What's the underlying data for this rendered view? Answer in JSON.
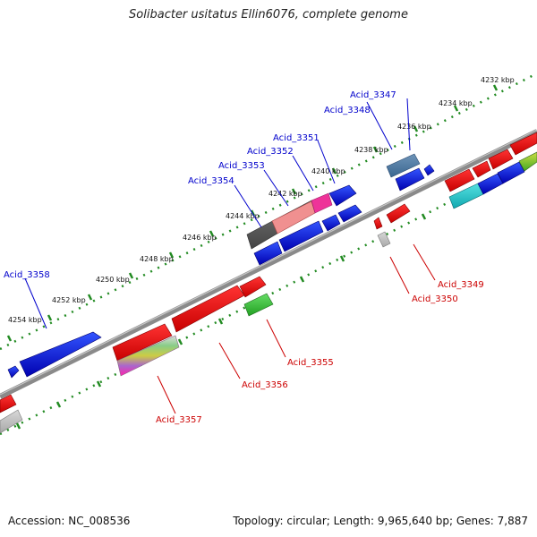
{
  "title": "Solibacter usitatus Ellin6076, complete genome",
  "accession": "Accession: NC_008536",
  "summary": "Topology: circular; Length: 9,965,640 bp; Genes: 7,887",
  "kbp_labels": [
    "4232 kbp",
    "4234 kbp",
    "4236 kbp",
    "4238 kbp",
    "4240 kbp",
    "4242 kbp",
    "4244 kbp",
    "4246 kbp",
    "4248 kbp",
    "4250 kbp",
    "4252 kbp",
    "4254 kbp"
  ],
  "forward_genes": [
    "Acid_3347",
    "Acid_3348",
    "Acid_3351",
    "Acid_3352",
    "Acid_3353",
    "Acid_3354",
    "Acid_3358"
  ],
  "reverse_genes": [
    "Acid_3349",
    "Acid_3350",
    "Acid_3355",
    "Acid_3356",
    "Acid_3357"
  ],
  "colors": {
    "forward_label": "#0000cc",
    "reverse_label": "#cc0000",
    "backbone": "#8a8a8a",
    "tick_track": "#228b22",
    "forward_gene": "#0000dd",
    "reverse_gene": "#ee0000"
  }
}
